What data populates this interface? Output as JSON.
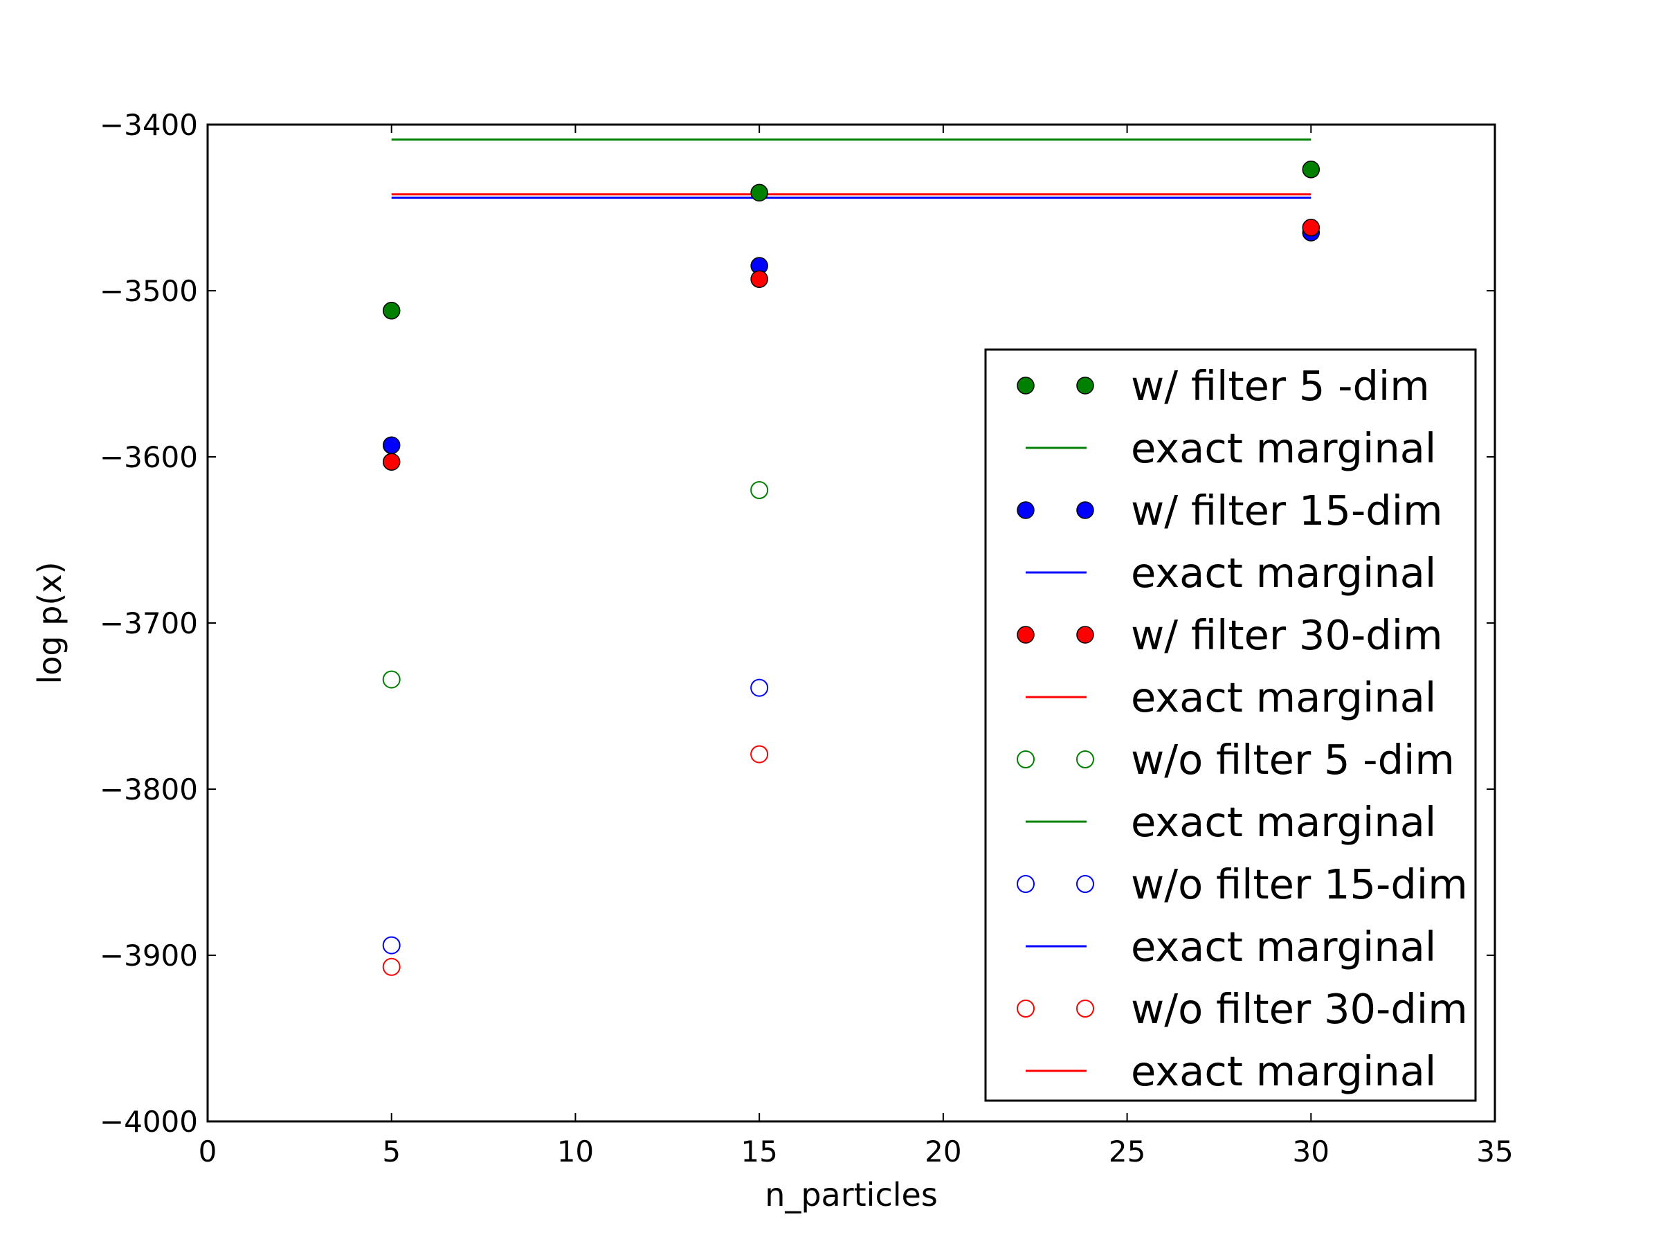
{
  "chart_data": {
    "type": "scatter",
    "title": "",
    "xlabel": "n_particles",
    "ylabel": "log p(x)",
    "xlim": [
      0,
      35
    ],
    "ylim": [
      -4000,
      -3400
    ],
    "xticks": [
      0,
      5,
      10,
      15,
      20,
      25,
      30,
      35
    ],
    "yticks": [
      -4000,
      -3900,
      -3800,
      -3700,
      -3600,
      -3500,
      -3400
    ],
    "xtick_labels": [
      "0",
      "5",
      "10",
      "15",
      "20",
      "25",
      "30",
      "35"
    ],
    "ytick_labels": [
      "−4000",
      "−3900",
      "−3800",
      "−3700",
      "−3600",
      "−3500",
      "−3400"
    ],
    "grid": false,
    "legend_position": "lower-right",
    "series": [
      {
        "name": "w/ filter 5 -dim",
        "kind": "points",
        "filled": true,
        "color": "#008000",
        "x": [
          5,
          15,
          30
        ],
        "y": [
          -3512,
          -3441,
          -3427
        ]
      },
      {
        "name": "exact marginal",
        "kind": "line",
        "color": "#008000",
        "x": [
          5,
          30
        ],
        "y": [
          -3409,
          -3409
        ]
      },
      {
        "name": "w/ filter 15-dim",
        "kind": "points",
        "filled": true,
        "color": "#0000ff",
        "x": [
          5,
          15,
          30
        ],
        "y": [
          -3593,
          -3485,
          -3465
        ]
      },
      {
        "name": "exact marginal",
        "kind": "line",
        "color": "#0000ff",
        "x": [
          5,
          30
        ],
        "y": [
          -3444,
          -3444
        ]
      },
      {
        "name": "w/ filter 30-dim",
        "kind": "points",
        "filled": true,
        "color": "#ff0000",
        "x": [
          5,
          15,
          30
        ],
        "y": [
          -3603,
          -3493,
          -3462
        ]
      },
      {
        "name": "exact marginal",
        "kind": "line",
        "color": "#ff0000",
        "x": [
          5,
          30
        ],
        "y": [
          -3442,
          -3442
        ]
      },
      {
        "name": "w/o filter 5 -dim",
        "kind": "points",
        "filled": false,
        "color": "#008000",
        "x": [
          5,
          15
        ],
        "y": [
          -3734,
          -3620
        ]
      },
      {
        "name": "exact marginal",
        "kind": "line",
        "color": "#008000",
        "x": [],
        "y": []
      },
      {
        "name": "w/o filter 15-dim",
        "kind": "points",
        "filled": false,
        "color": "#0000ff",
        "x": [
          5,
          15
        ],
        "y": [
          -3894,
          -3739
        ]
      },
      {
        "name": "exact marginal",
        "kind": "line",
        "color": "#0000ff",
        "x": [],
        "y": []
      },
      {
        "name": "w/o filter 30-dim",
        "kind": "points",
        "filled": false,
        "color": "#ff0000",
        "x": [
          5,
          15
        ],
        "y": [
          -3907,
          -3779
        ]
      },
      {
        "name": "exact marginal",
        "kind": "line",
        "color": "#ff0000",
        "x": [],
        "y": []
      }
    ]
  }
}
